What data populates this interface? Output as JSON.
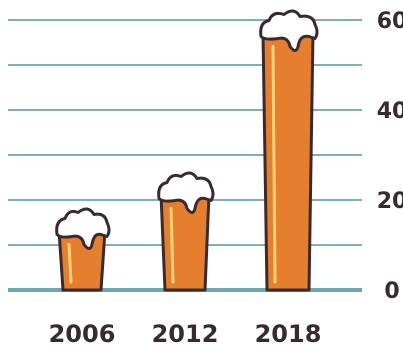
{
  "chart_data": {
    "type": "bar",
    "title": "",
    "xlabel": "",
    "ylabel": "",
    "categories": [
      "2006",
      "2012",
      "2018"
    ],
    "values": [
      15,
      23,
      59
    ],
    "ylim": [
      0,
      60
    ],
    "y_ticks": [
      "0",
      "20",
      "40",
      "60"
    ],
    "y_tick_values": [
      0,
      20,
      40,
      60
    ],
    "gridlines": [
      0,
      10,
      20,
      30,
      40,
      50,
      60
    ],
    "grid": true,
    "y_axis_position": "right",
    "bar_style": "beer-glass",
    "colors": {
      "beer": "#e57f2e",
      "foam": "#ffffff",
      "outline": "#3a2a2e",
      "highlight": "#ffd27a",
      "grid": "#7fb0b8",
      "baseline": "#6fa7b0",
      "text": "#3a2a2e"
    }
  }
}
